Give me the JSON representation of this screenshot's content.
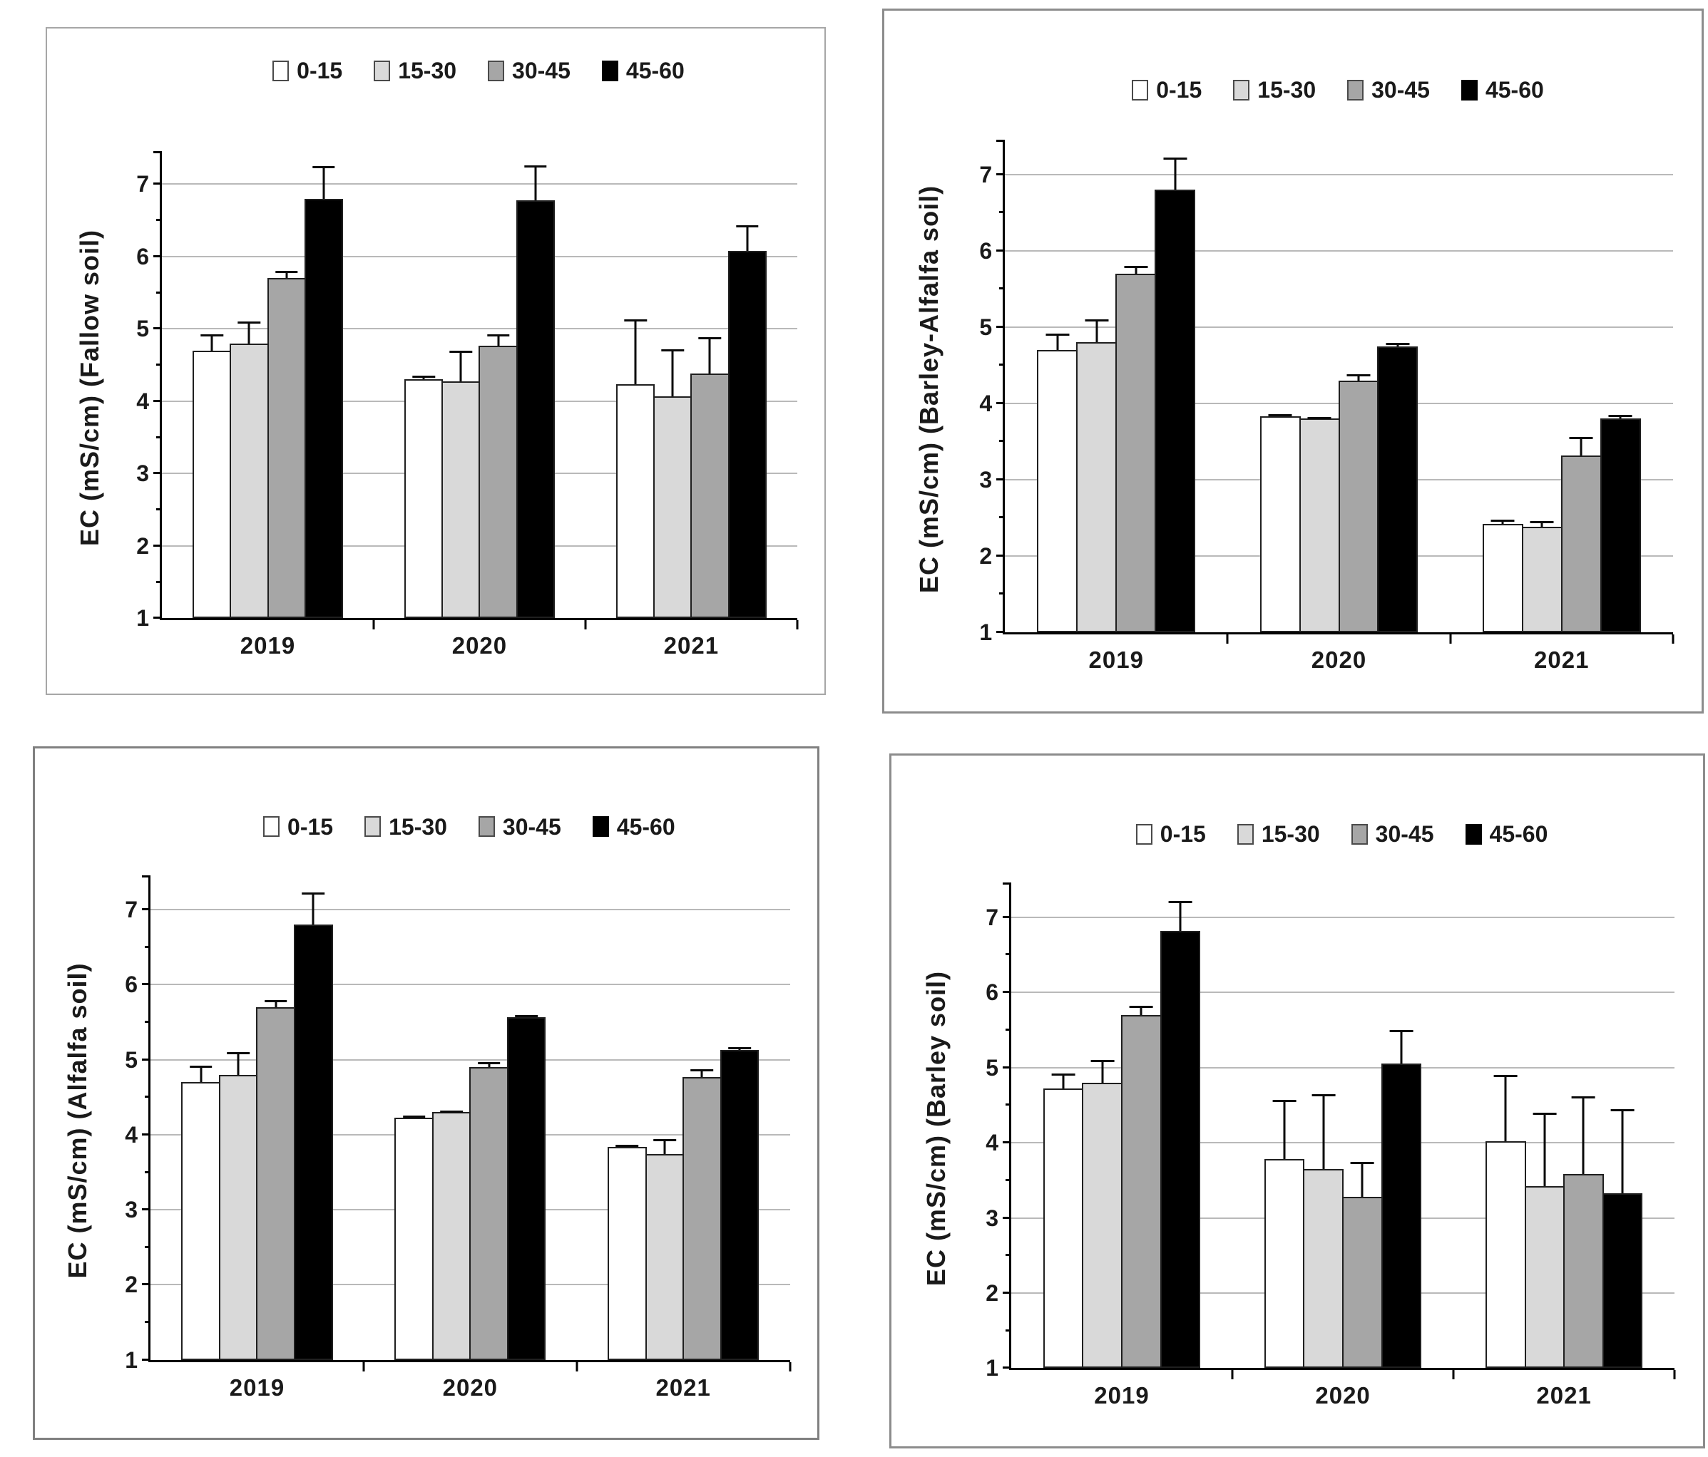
{
  "figure": {
    "background": "#ffffff"
  },
  "depth_legend_labels": [
    "0-15",
    "15-30",
    "30-45",
    "45-60"
  ],
  "series_colors": {
    "0-15": "#ffffff",
    "15-30": "#d9d9d9",
    "30-45": "#a6a6a6",
    "45-60": "#000000"
  },
  "axis": {
    "ymin": 1,
    "ymax": 7.45,
    "yticks": [
      1,
      2,
      3,
      4,
      5,
      6,
      7
    ],
    "minor_tick_step": 0.5
  },
  "chart_data": [
    {
      "type": "bar",
      "panel": "top-left",
      "ylabel": "EC (mS/cm) (Fallow soil)",
      "xlabel": "",
      "categories": [
        "2019",
        "2020",
        "2021"
      ],
      "ylim": [
        1,
        7.45
      ],
      "grid": "on",
      "legend_position": "top",
      "series": [
        {
          "name": "0-15",
          "color": "#ffffff",
          "values": [
            4.7,
            4.3,
            4.23
          ],
          "errors": [
            0.22,
            0.05,
            0.9
          ]
        },
        {
          "name": "15-30",
          "color": "#d9d9d9",
          "values": [
            4.8,
            4.27,
            4.07
          ],
          "errors": [
            0.3,
            0.43,
            0.65
          ]
        },
        {
          "name": "30-45",
          "color": "#a6a6a6",
          "values": [
            5.7,
            4.77,
            4.38
          ],
          "errors": [
            0.1,
            0.15,
            0.5
          ]
        },
        {
          "name": "45-60",
          "color": "#000000",
          "values": [
            6.8,
            6.78,
            6.08
          ],
          "errors": [
            0.45,
            0.48,
            0.35
          ]
        }
      ]
    },
    {
      "type": "bar",
      "panel": "top-right",
      "ylabel": "EC (mS/cm) (Barley-Alfalfa soil)",
      "xlabel": "",
      "categories": [
        "2019",
        "2020",
        "2021"
      ],
      "ylim": [
        1,
        7.45
      ],
      "grid": "on",
      "legend_position": "top",
      "series": [
        {
          "name": "0-15",
          "color": "#ffffff",
          "values": [
            4.7,
            3.83,
            2.42
          ],
          "errors": [
            0.22,
            0.03,
            0.06
          ]
        },
        {
          "name": "15-30",
          "color": "#d9d9d9",
          "values": [
            4.8,
            3.8,
            2.38
          ],
          "errors": [
            0.3,
            0.02,
            0.08
          ]
        },
        {
          "name": "30-45",
          "color": "#a6a6a6",
          "values": [
            5.7,
            4.3,
            3.32
          ],
          "errors": [
            0.1,
            0.08,
            0.24
          ]
        },
        {
          "name": "45-60",
          "color": "#000000",
          "values": [
            6.8,
            4.75,
            3.8
          ],
          "errors": [
            0.42,
            0.04,
            0.05
          ]
        }
      ]
    },
    {
      "type": "bar",
      "panel": "bottom-left",
      "ylabel": "EC (mS/cm) (Alfalfa soil)",
      "xlabel": "",
      "categories": [
        "2019",
        "2020",
        "2021"
      ],
      "ylim": [
        1,
        7.45
      ],
      "grid": "on",
      "legend_position": "top",
      "series": [
        {
          "name": "0-15",
          "color": "#ffffff",
          "values": [
            4.7,
            4.23,
            3.84
          ],
          "errors": [
            0.22,
            0.03,
            0.03
          ]
        },
        {
          "name": "15-30",
          "color": "#d9d9d9",
          "values": [
            4.8,
            4.3,
            3.74
          ],
          "errors": [
            0.3,
            0.02,
            0.2
          ]
        },
        {
          "name": "30-45",
          "color": "#a6a6a6",
          "values": [
            5.7,
            4.9,
            4.77
          ],
          "errors": [
            0.1,
            0.07,
            0.1
          ]
        },
        {
          "name": "45-60",
          "color": "#000000",
          "values": [
            6.8,
            5.57,
            5.13
          ],
          "errors": [
            0.43,
            0.03,
            0.04
          ]
        }
      ]
    },
    {
      "type": "bar",
      "panel": "bottom-right",
      "ylabel": "EC (mS/cm) (Barley soil)",
      "xlabel": "",
      "categories": [
        "2019",
        "2020",
        "2021"
      ],
      "ylim": [
        1,
        7.45
      ],
      "grid": "on",
      "legend_position": "top",
      "series": [
        {
          "name": "0-15",
          "color": "#ffffff",
          "values": [
            4.72,
            3.78,
            4.02
          ],
          "errors": [
            0.2,
            0.79,
            0.88
          ]
        },
        {
          "name": "15-30",
          "color": "#d9d9d9",
          "values": [
            4.8,
            3.65,
            3.42
          ],
          "errors": [
            0.3,
            1.0,
            0.98
          ]
        },
        {
          "name": "30-45",
          "color": "#a6a6a6",
          "values": [
            5.7,
            3.28,
            3.58
          ],
          "errors": [
            0.12,
            0.46,
            1.04
          ]
        },
        {
          "name": "45-60",
          "color": "#000000",
          "values": [
            6.82,
            5.05,
            3.33
          ],
          "errors": [
            0.4,
            0.45,
            1.12
          ]
        }
      ]
    }
  ]
}
